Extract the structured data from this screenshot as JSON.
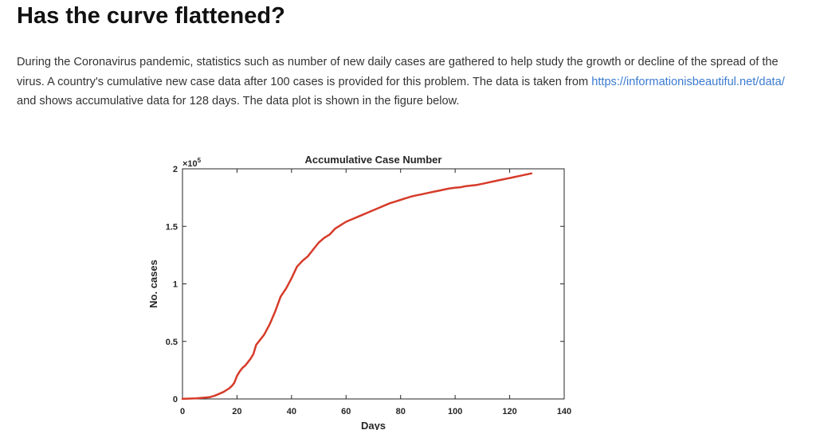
{
  "page": {
    "title": "Has the curve flattened?",
    "intro_before_link": "During the Coronavirus pandemic, statistics such as number of new daily cases are gathered to help study the growth or decline of the spread of the virus.  A country's cumulative new case data after 100 cases is provided for this problem. The data is taken from ",
    "link_text": "https://informationisbeautiful.net/data/",
    "intro_after_link": " and shows accumulative data for 128 days. The data plot is shown in the figure below."
  },
  "chart_data": {
    "type": "line",
    "title": "Accumulative Case Number",
    "xlabel": "Days",
    "ylabel": "No. cases",
    "y_exponent_label": "×10",
    "y_exponent_power": "5",
    "xlim": [
      0,
      140
    ],
    "ylim": [
      0,
      200000
    ],
    "xticks": [
      0,
      20,
      40,
      60,
      80,
      100,
      120,
      140
    ],
    "yticks": [
      0,
      50000,
      100000,
      150000,
      200000
    ],
    "xtick_labels": [
      "0",
      "20",
      "40",
      "60",
      "80",
      "100",
      "120",
      "140"
    ],
    "ytick_labels": [
      "0",
      "0.5",
      "1",
      "1.5",
      "2"
    ],
    "grid": false,
    "line_color": "#d63b2a",
    "series": [
      {
        "x": [
          0,
          5,
          10,
          12,
          15,
          17,
          18,
          19,
          20,
          21,
          22,
          23,
          24,
          25,
          26,
          27,
          28,
          30,
          32,
          34,
          36,
          38,
          40,
          42,
          44,
          46,
          48,
          50,
          52,
          54,
          56,
          58,
          60,
          62,
          64,
          66,
          68,
          70,
          72,
          74,
          76,
          78,
          80,
          82,
          84,
          86,
          88,
          90,
          92,
          94,
          96,
          98,
          100,
          102,
          104,
          106,
          108,
          110,
          112,
          114,
          116,
          118,
          120,
          122,
          124,
          126,
          128
        ],
        "y": [
          100,
          500,
          1500,
          3000,
          6000,
          9000,
          11000,
          14000,
          20000,
          24000,
          27000,
          29000,
          32000,
          35000,
          39000,
          47000,
          50000,
          56000,
          65000,
          76000,
          89000,
          96000,
          105000,
          115000,
          120000,
          124000,
          130000,
          136000,
          140000,
          143000,
          148000,
          151000,
          154000,
          156000,
          158000,
          160000,
          162000,
          164000,
          166000,
          168000,
          170000,
          171500,
          173000,
          174500,
          176000,
          177000,
          178000,
          179000,
          180000,
          181000,
          182000,
          183000,
          183500,
          184000,
          185000,
          185500,
          186000,
          187000,
          188000,
          189000,
          190000,
          191000,
          192000,
          193000,
          194000,
          195000,
          196000
        ]
      }
    ]
  }
}
